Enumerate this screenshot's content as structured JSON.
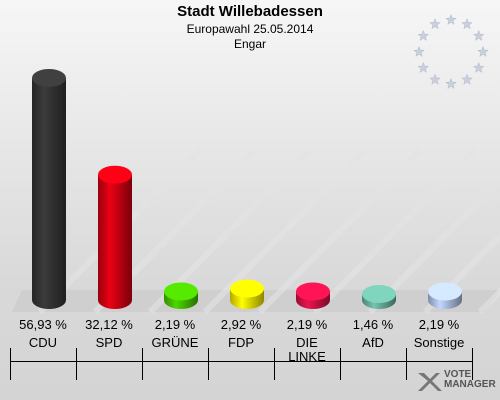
{
  "title": "Stadt Willebadessen",
  "subtitle": "Europawahl 25.05.2014",
  "location": "Engar",
  "chart_data": {
    "type": "bar",
    "categories": [
      "CDU",
      "SPD",
      "GRÜNE",
      "FDP",
      "DIE LINKE",
      "AfD",
      "Sonstige"
    ],
    "values": [
      56.93,
      32.12,
      2.19,
      2.92,
      2.19,
      1.46,
      2.19
    ],
    "value_labels": [
      "56,93 %",
      "32,12 %",
      "2,19 %",
      "2,92 %",
      "2,19 %",
      "1,46 %",
      "2,19 %"
    ],
    "colors": [
      "#333333",
      "#cc0011",
      "#44bb00",
      "#eedd00",
      "#cc1144",
      "#66aa99",
      "#aabbdd"
    ],
    "ylim": [
      0,
      60
    ],
    "grid": false,
    "legend": "none"
  },
  "logo_text": "VOTE MANAGER",
  "icons": {
    "eu_emblem": "eu-stars-icon",
    "logo": "vote-manager-logo-icon"
  }
}
